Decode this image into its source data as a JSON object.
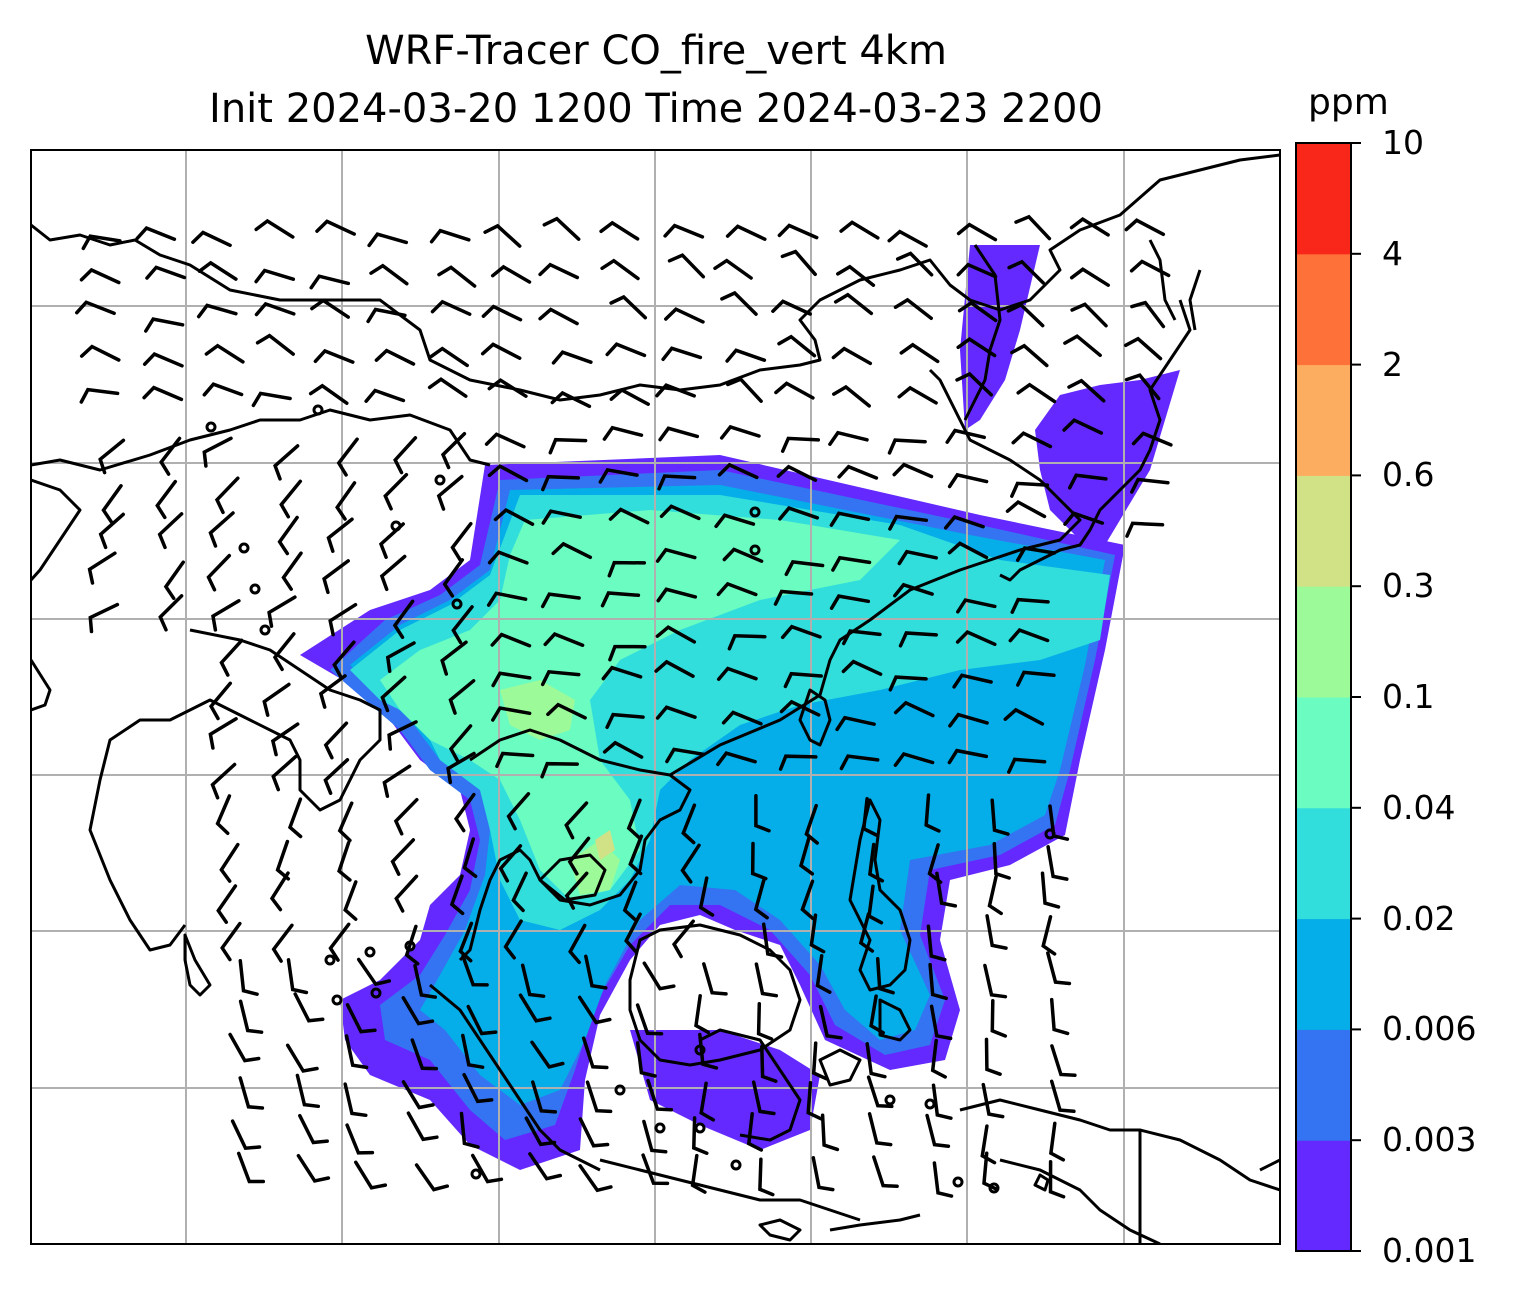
{
  "title": {
    "line1": "WRF-Tracer CO_fire_vert 4km",
    "line2": "Init 2024-03-20 1200 Time 2024-03-23 2200"
  },
  "colorbar": {
    "unit": "ppm",
    "levels": [
      "0.001",
      "0.003",
      "0.006",
      "0.02",
      "0.04",
      "0.1",
      "0.3",
      "0.6",
      "2",
      "4",
      "10"
    ],
    "colors": [
      "#6429ff",
      "#3474f2",
      "#05aee8",
      "#31dedc",
      "#6afcc0",
      "#9cfb98",
      "#d1e186",
      "#fdad60",
      "#fe7138",
      "#f9271a"
    ]
  },
  "map": {
    "field": "CO_fire_vert",
    "gridlines": true,
    "coastlines": true,
    "wind_barbs": true
  }
}
